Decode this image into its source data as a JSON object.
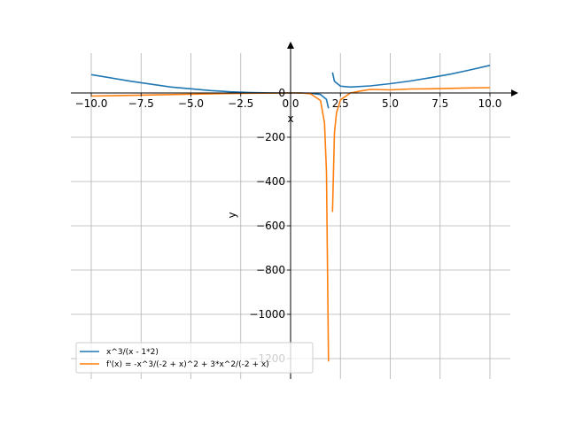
{
  "chart_data": {
    "type": "line",
    "xlabel": "x",
    "ylabel": "y",
    "xlim": [
      -10.0,
      10.0
    ],
    "ylim": [
      -1300,
      200
    ],
    "grid": true,
    "legend_position": "lower-left",
    "x_ticks": [
      {
        "value": -10.0,
        "label": "−10.0"
      },
      {
        "value": -7.5,
        "label": "−7.5"
      },
      {
        "value": -5.0,
        "label": "−5.0"
      },
      {
        "value": -2.5,
        "label": "−2.5"
      },
      {
        "value": 0.0,
        "label": "0.0"
      },
      {
        "value": 2.5,
        "label": "2.5"
      },
      {
        "value": 5.0,
        "label": "5.0"
      },
      {
        "value": 7.5,
        "label": "7.5"
      },
      {
        "value": 10.0,
        "label": "10.0"
      }
    ],
    "y_ticks": [
      {
        "value": 0,
        "label": "0"
      },
      {
        "value": -200,
        "label": "−200"
      },
      {
        "value": -400,
        "label": "−400"
      },
      {
        "value": -600,
        "label": "−600"
      },
      {
        "value": -800,
        "label": "−800"
      },
      {
        "value": -1000,
        "label": "−1000"
      },
      {
        "value": -1200,
        "label": "−1200"
      }
    ],
    "series": [
      {
        "name": "x^3/(x - 1*2)",
        "color": "#1f77b4",
        "points": [
          [
            -10,
            83
          ],
          [
            -8,
            53
          ],
          [
            -6,
            27
          ],
          [
            -4,
            11
          ],
          [
            -3,
            5.4
          ],
          [
            -2,
            2
          ],
          [
            -1,
            0.3
          ],
          [
            0,
            0
          ],
          [
            0.5,
            -0.1
          ],
          [
            1,
            -1
          ],
          [
            1.5,
            -6.8
          ],
          [
            1.8,
            -29
          ],
          [
            1.9,
            -69
          ],
          [
            2.1,
            93
          ],
          [
            2.2,
            53
          ],
          [
            2.5,
            31
          ],
          [
            3,
            27
          ],
          [
            4,
            32
          ],
          [
            5,
            42
          ],
          [
            6,
            54
          ],
          [
            7,
            69
          ],
          [
            8,
            85
          ],
          [
            9,
            104
          ],
          [
            10,
            125
          ]
        ]
      },
      {
        "name": "f'(x) = -x^3/(-2 + x)^2 + 3*x^2/(-2 + x)",
        "color": "#ff7f0e",
        "points": [
          [
            -10,
            -14
          ],
          [
            -8,
            -10.6
          ],
          [
            -6,
            -7
          ],
          [
            -4,
            -3.8
          ],
          [
            -2,
            -1.3
          ],
          [
            0,
            0
          ],
          [
            0.5,
            -0.2
          ],
          [
            1,
            -4
          ],
          [
            1.5,
            -34
          ],
          [
            1.7,
            -136
          ],
          [
            1.8,
            -356
          ],
          [
            1.9,
            -1213
          ],
          [
            2.1,
            -537
          ],
          [
            2.2,
            -181
          ],
          [
            2.3,
            -90
          ],
          [
            2.5,
            -31
          ],
          [
            3,
            0
          ],
          [
            3.5,
            9
          ],
          [
            4,
            16
          ],
          [
            5,
            14
          ],
          [
            6,
            18
          ],
          [
            7,
            19
          ],
          [
            8,
            21
          ],
          [
            9,
            23
          ],
          [
            10,
            24
          ]
        ]
      }
    ]
  }
}
